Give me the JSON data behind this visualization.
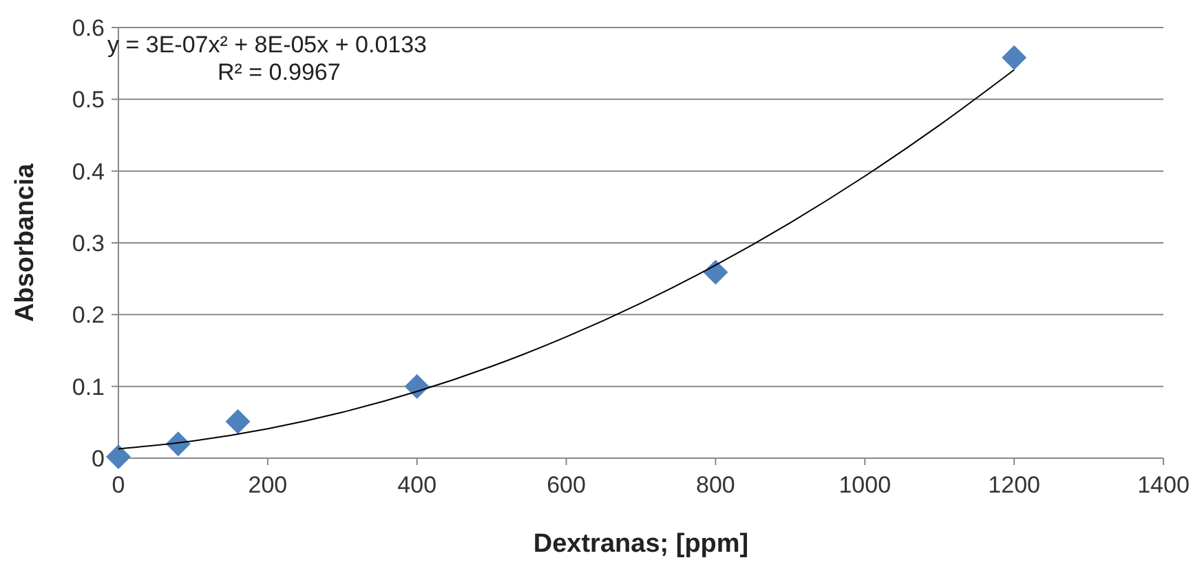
{
  "chart_data": {
    "type": "scatter",
    "xlabel": "Dextranas; [ppm]",
    "ylabel": "Absorbancia",
    "annotations": [
      "y = 3E-07x² + 8E-05x + 0.0133",
      "R² = 0.9967"
    ],
    "xlim": [
      0,
      1400
    ],
    "xticks": [
      0,
      200,
      400,
      600,
      800,
      1000,
      1200,
      1400
    ],
    "ylim": [
      0,
      0.6
    ],
    "yticks": [
      0,
      0.1,
      0.2,
      0.3,
      0.4,
      0.5,
      0.6
    ],
    "grid": "y",
    "series": [
      {
        "color": "#4f81bd",
        "marker": "diamond",
        "x": [
          0,
          80,
          160,
          400,
          800,
          1200
        ],
        "values": [
          0.002,
          0.02,
          0.051,
          0.1,
          0.259,
          0.558
        ]
      },
      {
        "type": "line",
        "color": "#000000",
        "marker": "none",
        "line_style": "solid",
        "x": [
          0,
          100,
          200,
          300,
          400,
          500,
          600,
          700,
          800,
          900,
          1000,
          1100,
          1200
        ],
        "values": [
          0.013,
          0.024,
          0.041,
          0.064,
          0.093,
          0.128,
          0.169,
          0.216,
          0.269,
          0.328,
          0.393,
          0.464,
          0.541
        ]
      }
    ]
  }
}
